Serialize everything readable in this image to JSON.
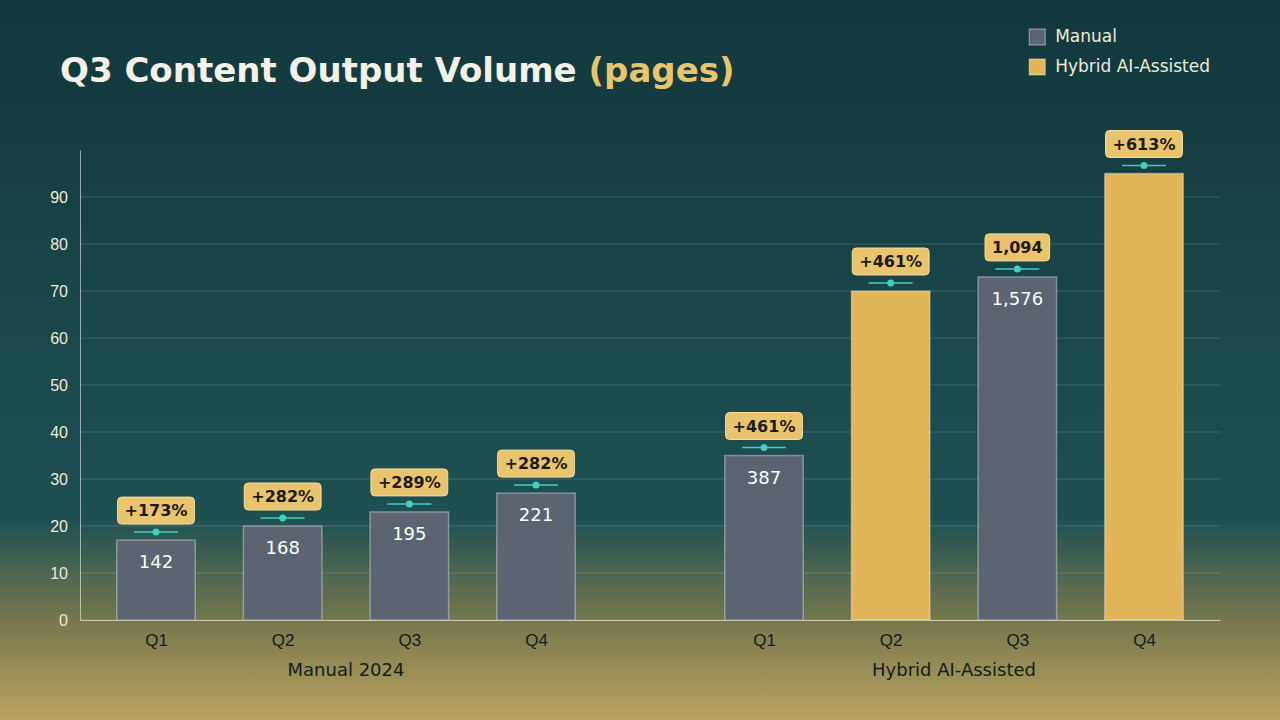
{
  "chart_data": {
    "type": "bar",
    "title": "Q3 Content Output Volume (pages)",
    "categories": [
      "Q1",
      "Q2",
      "Q3",
      "Q4",
      "Q1",
      "Q2",
      "Q3",
      "Q4"
    ],
    "groups": [
      "Manual 2024",
      "Manual 2024",
      "Manual 2024",
      "Manual 2024",
      "Hybrid AI-Assisted",
      "Hybrid AI-Assisted",
      "Hybrid AI-Assisted",
      "Hybrid AI-Assisted"
    ],
    "series": [
      {
        "name": "Manual",
        "color": "#5b6470",
        "values": [
          17,
          20,
          23,
          27,
          35,
          null,
          73,
          null
        ]
      },
      {
        "name": "Hybrid AI-Assisted",
        "color": "#e2b559",
        "values": [
          null,
          null,
          null,
          null,
          null,
          70,
          null,
          95
        ]
      }
    ],
    "bar_annotations": [
      "+173%",
      "+282%",
      "+289%",
      "+282%",
      "+461%",
      "+461%",
      "1,094",
      "+613%"
    ],
    "bar_inner_labels": [
      "142",
      "168",
      "195",
      "221",
      "387",
      null,
      "1,576",
      null
    ],
    "ylim": [
      0,
      100
    ],
    "yticks": [
      0,
      10,
      20,
      30,
      40,
      50,
      60,
      70,
      80,
      90
    ],
    "grid": true,
    "legend": "upper right"
  }
}
